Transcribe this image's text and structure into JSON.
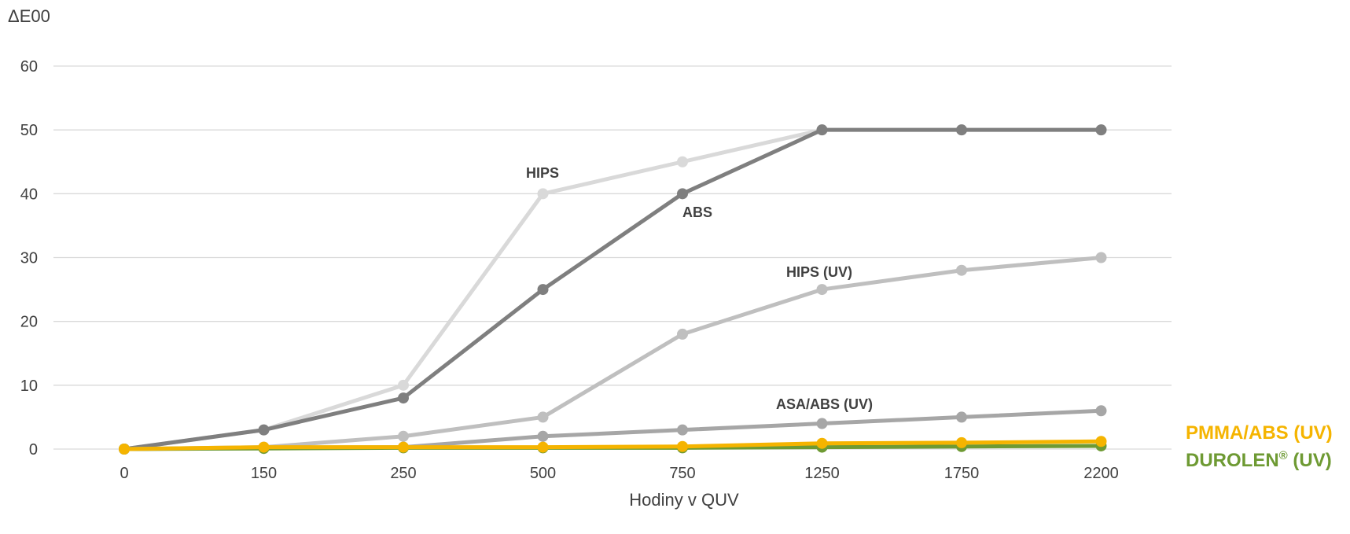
{
  "chart_data": {
    "type": "line",
    "ylabel": "ΔE00",
    "xlabel": "Hodiny v QUV",
    "categories": [
      "0",
      "150",
      "250",
      "500",
      "750",
      "1250",
      "1750",
      "2200"
    ],
    "ylim": [
      0,
      60
    ],
    "yticks": [
      0,
      10,
      20,
      30,
      40,
      50,
      60
    ],
    "grid": true,
    "series": [
      {
        "name": "HIPS",
        "color": "#d9d9d9",
        "values": [
          0,
          3,
          10,
          40,
          45,
          50,
          50,
          50
        ]
      },
      {
        "name": "ABS",
        "color": "#7f7f7f",
        "values": [
          0,
          3,
          8,
          25,
          40,
          50,
          50,
          50
        ]
      },
      {
        "name": "HIPS (UV)",
        "color": "#bfbfbf",
        "values": [
          0,
          0.3,
          2,
          5,
          18,
          25,
          28,
          30
        ]
      },
      {
        "name": "ASA/ABS (UV)",
        "color": "#a6a6a6",
        "values": [
          0,
          0.2,
          0.3,
          2,
          3,
          4,
          5,
          6
        ]
      },
      {
        "name": "DUROLEN® (UV)",
        "color": "#6e9a33",
        "values": [
          0,
          0.1,
          0.2,
          0.2,
          0.2,
          0.3,
          0.4,
          0.5
        ]
      },
      {
        "name": "PMMA/ABS (UV)",
        "color": "#f5b400",
        "values": [
          0,
          0.3,
          0.3,
          0.3,
          0.4,
          0.9,
          1.0,
          1.2
        ]
      }
    ],
    "legend": {
      "pmma": {
        "label": "PMMA/ABS (UV)",
        "color": "#f5b400"
      },
      "durolen_main": "DUROLEN",
      "durolen_sup": "®",
      "durolen_tail": " (UV)",
      "durolen_color": "#6e9a33"
    },
    "annotations": [
      "HIPS",
      "ABS",
      "HIPS (UV)",
      "ASA/ABS (UV)"
    ]
  }
}
